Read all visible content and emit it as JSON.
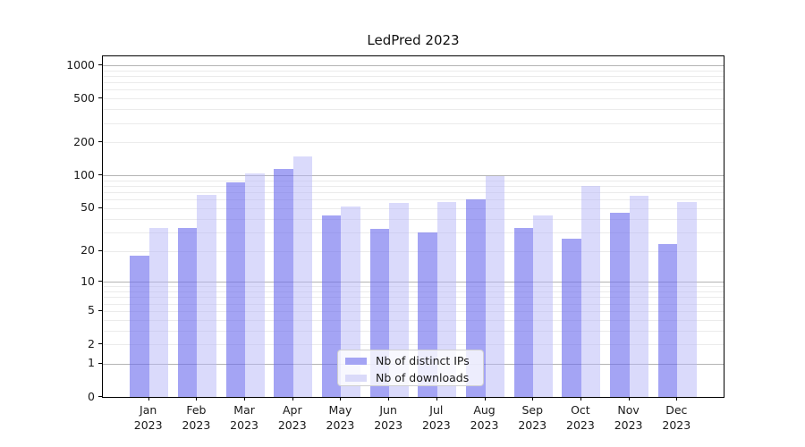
{
  "title": "LedPred 2023",
  "legend": {
    "items": [
      {
        "label": "Nb of distinct IPs",
        "swatch_color": "#a4a4f4"
      },
      {
        "label": "Nb of downloads",
        "swatch_color": "#dadaf9"
      }
    ]
  },
  "colors": {
    "bar_ips": "rgba(108,108,238,0.62)",
    "bar_downloads": "rgba(182,182,248,0.50)",
    "grid_major": "#b4b4b4",
    "grid_minor": "#ebebeb",
    "spine": "#000000",
    "text": "#1a1a1a"
  },
  "chart_data": {
    "type": "bar",
    "title": "LedPred 2023",
    "categories": [
      "Jan 2023",
      "Feb 2023",
      "Mar 2023",
      "Apr 2023",
      "May 2023",
      "Jun 2023",
      "Jul 2023",
      "Aug 2023",
      "Sep 2023",
      "Oct 2023",
      "Nov 2023",
      "Dec 2023"
    ],
    "x_tick_top_lines": [
      "Jan",
      "Feb",
      "Mar",
      "Apr",
      "May",
      "Jun",
      "Jul",
      "Aug",
      "Sep",
      "Oct",
      "Nov",
      "Dec"
    ],
    "x_tick_bottom_line": "2023",
    "series": [
      {
        "name": "Nb of distinct IPs",
        "values": [
          18,
          33,
          87,
          115,
          43,
          32,
          30,
          60,
          33,
          26,
          45,
          23
        ]
      },
      {
        "name": "Nb of downloads",
        "values": [
          33,
          66,
          104,
          149,
          52,
          56,
          57,
          98,
          43,
          80,
          65,
          57
        ]
      }
    ],
    "yscale": "log1p",
    "ylim": [
      0,
      1000
    ],
    "yticks": [
      0,
      1,
      2,
      5,
      10,
      20,
      50,
      100,
      200,
      500,
      1000
    ],
    "grid_major_values": [
      1,
      10,
      100,
      1000
    ],
    "grid_minor_values": [
      2,
      3,
      4,
      5,
      6,
      7,
      8,
      9,
      20,
      30,
      40,
      50,
      60,
      70,
      80,
      90,
      200,
      300,
      400,
      500,
      600,
      700,
      800,
      900
    ],
    "legend_position": "lower center",
    "xlabel": "",
    "ylabel": ""
  }
}
